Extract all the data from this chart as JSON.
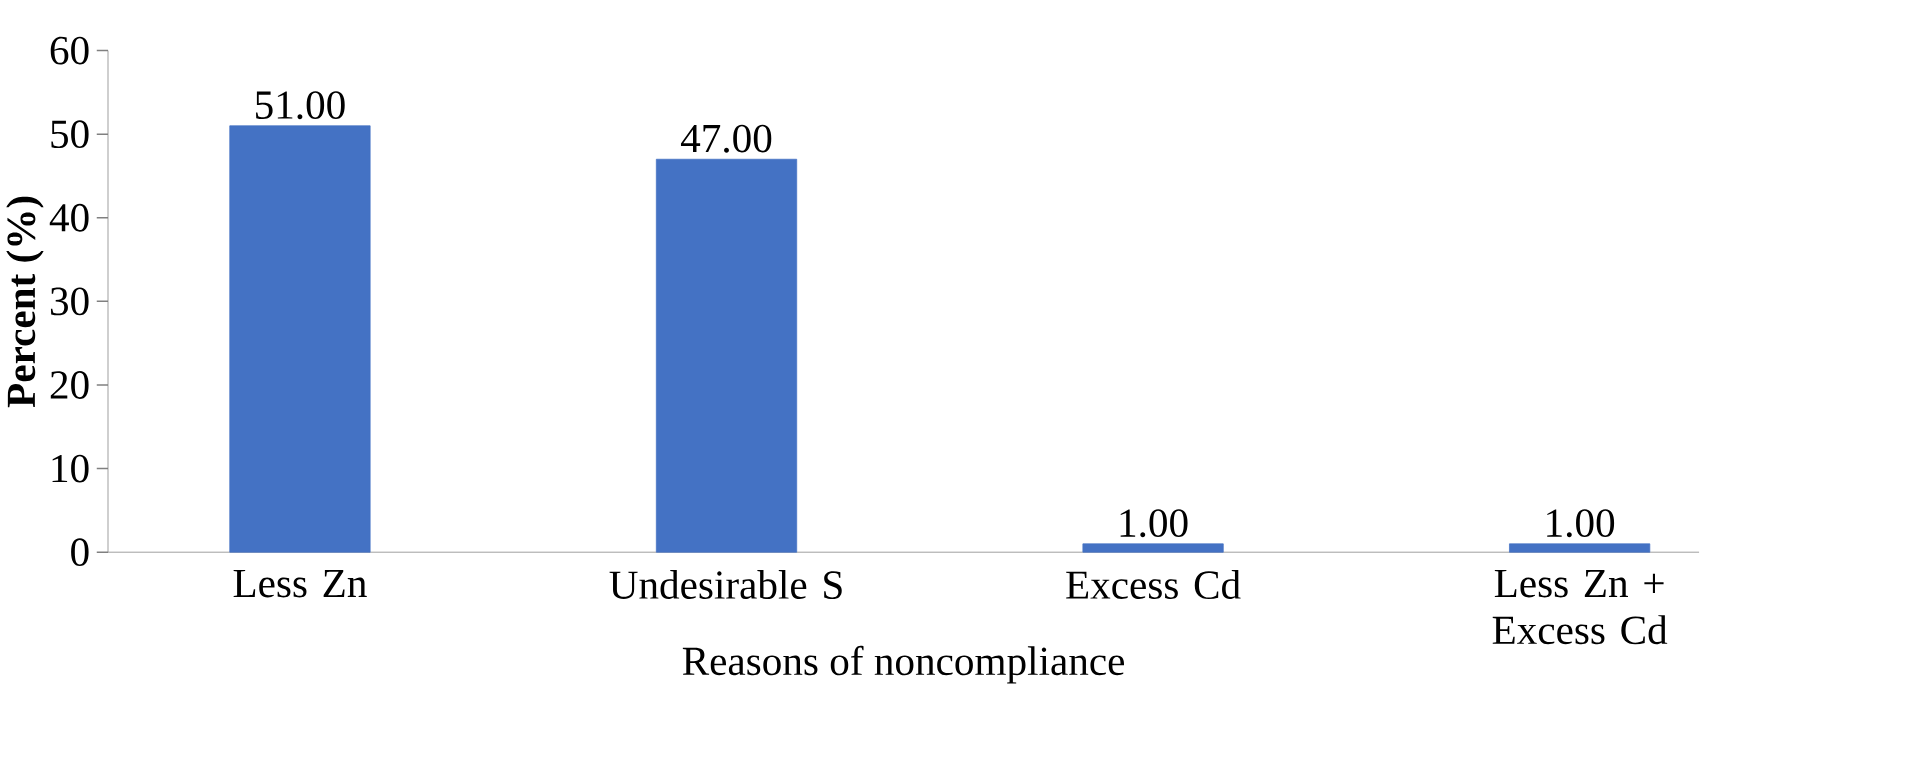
{
  "chart_data": {
    "type": "bar",
    "xlabel": "Reasons of noncompliance",
    "ylabel": "Percent (%)",
    "categories": [
      "Less Zn",
      "Undesirable S",
      "Excess Cd",
      "Less Zn + Excess Cd"
    ],
    "values": [
      51,
      47,
      1,
      1
    ],
    "value_labels": [
      "51.00",
      "47.00",
      "1.00",
      "1.00"
    ],
    "color": "#4472c4",
    "ylim": [
      0,
      60
    ],
    "yticks": [
      0,
      10,
      20,
      30,
      40,
      50,
      60
    ]
  }
}
